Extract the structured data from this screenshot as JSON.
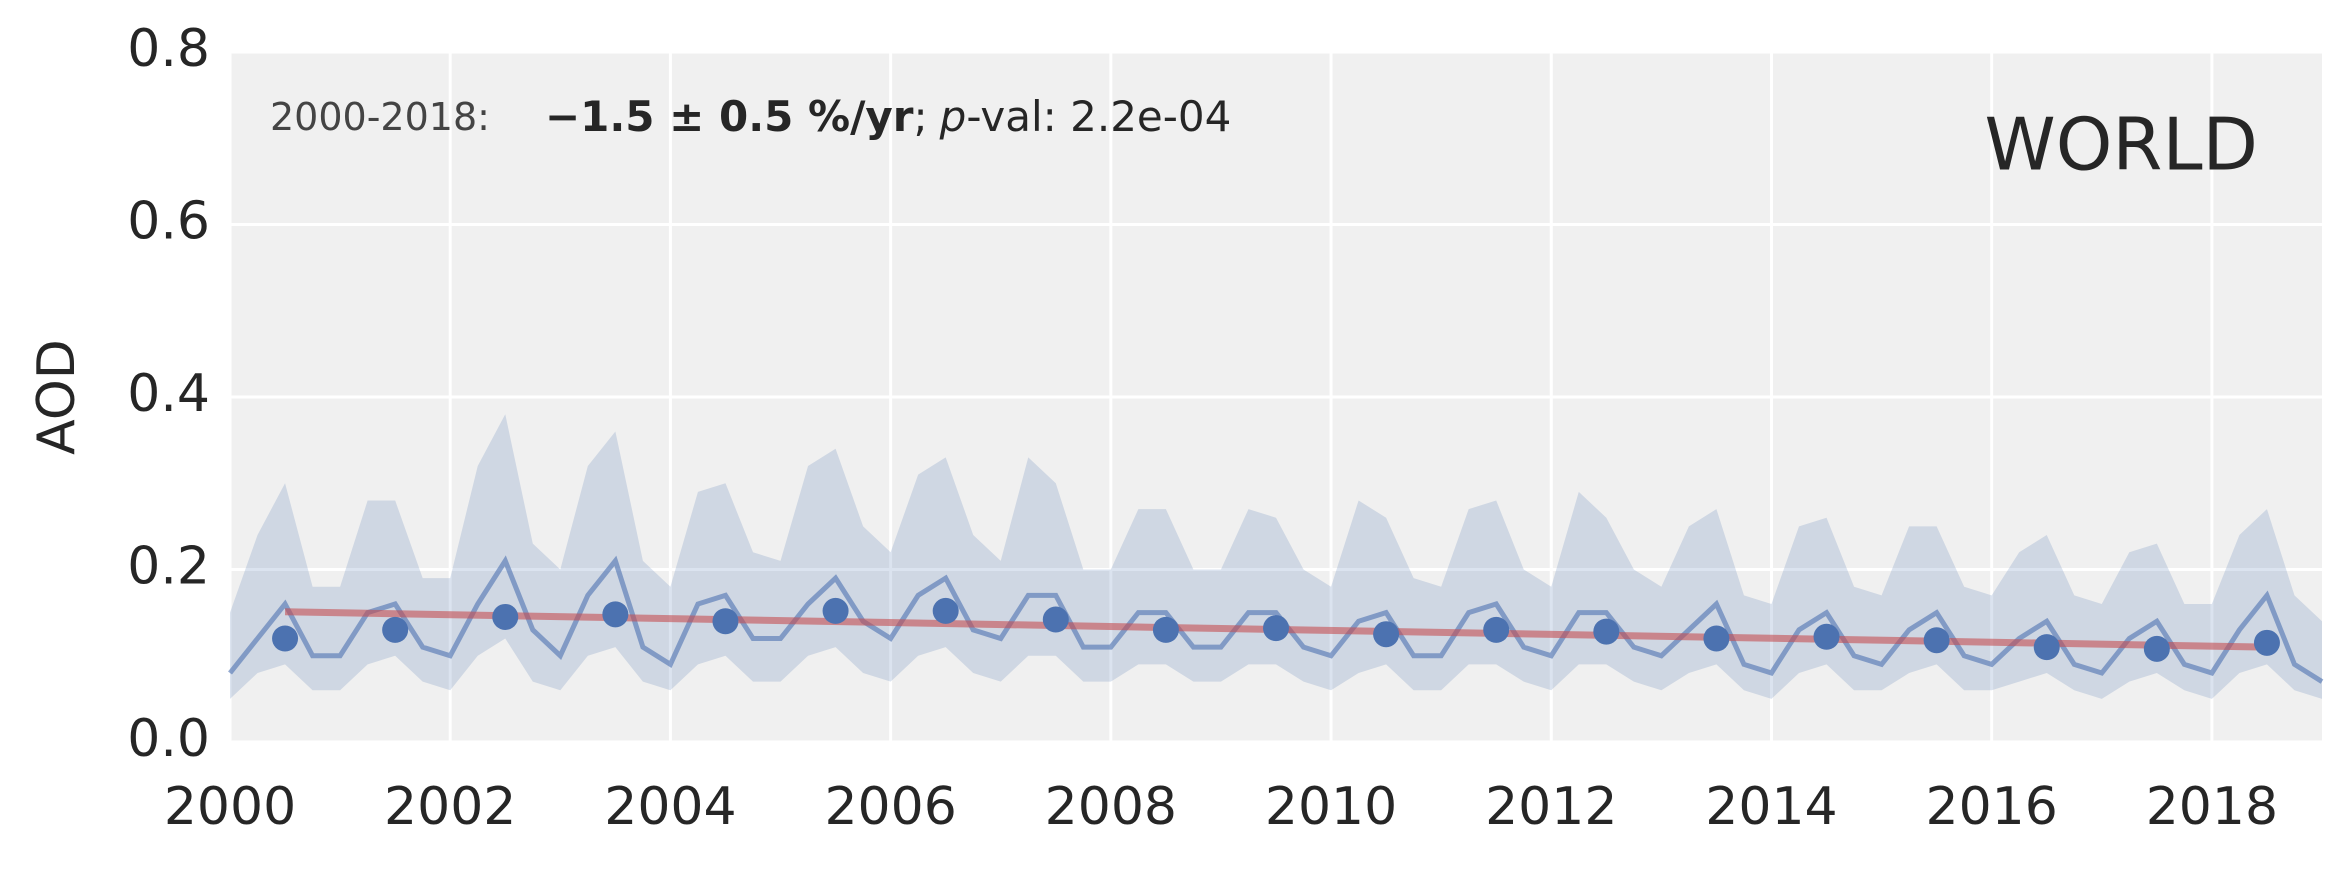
{
  "chart_data": {
    "type": "line",
    "ylabel": "AOD",
    "region": "WORLD",
    "annotation": {
      "period": "2000-2018:",
      "trend": "−1.5 ± 0.5 %/yr",
      "sep": ";",
      "p": "p",
      "pval": "-val: 2.2e-04"
    },
    "xlim": [
      2000,
      2019
    ],
    "ylim": [
      0,
      0.8
    ],
    "xticks": [
      2000,
      2002,
      2004,
      2006,
      2008,
      2010,
      2012,
      2014,
      2016,
      2018
    ],
    "yticks": [
      {
        "value": 0,
        "label": "0.0"
      },
      0.2,
      0.4,
      0.6,
      0.8
    ],
    "grid": true,
    "color": "#4c72b0",
    "trend_color": "#c44e52",
    "x": [
      2000,
      2000.25,
      2000.5,
      2000.75,
      2001,
      2001.25,
      2001.5,
      2001.75,
      2002,
      2002.25,
      2002.5,
      2002.75,
      2003,
      2003.25,
      2003.5,
      2003.75,
      2004,
      2004.25,
      2004.5,
      2004.75,
      2005,
      2005.25,
      2005.5,
      2005.75,
      2006,
      2006.25,
      2006.5,
      2006.75,
      2007,
      2007.25,
      2007.5,
      2007.75,
      2008,
      2008.25,
      2008.5,
      2008.75,
      2009,
      2009.25,
      2009.5,
      2009.75,
      2010,
      2010.25,
      2010.5,
      2010.75,
      2011,
      2011.25,
      2011.5,
      2011.75,
      2012,
      2012.25,
      2012.5,
      2012.75,
      2013,
      2013.25,
      2013.5,
      2013.75,
      2014,
      2014.25,
      2014.5,
      2014.75,
      2015,
      2015.25,
      2015.5,
      2015.75,
      2016,
      2016.25,
      2016.5,
      2016.75,
      2017,
      2017.25,
      2017.5,
      2017.75,
      2018,
      2018.25,
      2018.5,
      2018.75,
      2019
    ],
    "values": [
      0.08,
      0.12,
      0.16,
      0.1,
      0.1,
      0.15,
      0.16,
      0.11,
      0.1,
      0.16,
      0.21,
      0.13,
      0.1,
      0.17,
      0.21,
      0.11,
      0.09,
      0.16,
      0.17,
      0.12,
      0.12,
      0.16,
      0.19,
      0.14,
      0.12,
      0.17,
      0.19,
      0.13,
      0.12,
      0.17,
      0.17,
      0.11,
      0.11,
      0.15,
      0.15,
      0.11,
      0.11,
      0.15,
      0.15,
      0.11,
      0.1,
      0.14,
      0.15,
      0.1,
      0.1,
      0.15,
      0.16,
      0.11,
      0.1,
      0.15,
      0.15,
      0.11,
      0.1,
      0.13,
      0.16,
      0.09,
      0.08,
      0.13,
      0.15,
      0.1,
      0.09,
      0.13,
      0.15,
      0.1,
      0.09,
      0.12,
      0.14,
      0.09,
      0.08,
      0.12,
      0.14,
      0.09,
      0.08,
      0.13,
      0.17,
      0.09,
      0.07
    ],
    "lower": [
      0.05,
      0.08,
      0.09,
      0.06,
      0.06,
      0.09,
      0.1,
      0.07,
      0.06,
      0.1,
      0.12,
      0.07,
      0.06,
      0.1,
      0.11,
      0.07,
      0.06,
      0.09,
      0.1,
      0.07,
      0.07,
      0.1,
      0.11,
      0.08,
      0.07,
      0.1,
      0.11,
      0.08,
      0.07,
      0.1,
      0.1,
      0.07,
      0.07,
      0.09,
      0.09,
      0.07,
      0.07,
      0.09,
      0.09,
      0.07,
      0.06,
      0.08,
      0.09,
      0.06,
      0.06,
      0.09,
      0.09,
      0.07,
      0.06,
      0.09,
      0.09,
      0.07,
      0.06,
      0.08,
      0.09,
      0.06,
      0.05,
      0.08,
      0.09,
      0.06,
      0.06,
      0.08,
      0.09,
      0.06,
      0.06,
      0.07,
      0.08,
      0.06,
      0.05,
      0.07,
      0.08,
      0.06,
      0.05,
      0.08,
      0.09,
      0.06,
      0.05
    ],
    "upper": [
      0.15,
      0.24,
      0.3,
      0.18,
      0.18,
      0.28,
      0.28,
      0.19,
      0.19,
      0.32,
      0.38,
      0.23,
      0.2,
      0.32,
      0.36,
      0.21,
      0.18,
      0.29,
      0.3,
      0.22,
      0.21,
      0.32,
      0.34,
      0.25,
      0.22,
      0.31,
      0.33,
      0.24,
      0.21,
      0.33,
      0.3,
      0.2,
      0.2,
      0.27,
      0.27,
      0.2,
      0.2,
      0.27,
      0.26,
      0.2,
      0.18,
      0.28,
      0.26,
      0.19,
      0.18,
      0.27,
      0.28,
      0.2,
      0.18,
      0.29,
      0.26,
      0.2,
      0.18,
      0.25,
      0.27,
      0.17,
      0.16,
      0.25,
      0.26,
      0.18,
      0.17,
      0.25,
      0.25,
      0.18,
      0.17,
      0.22,
      0.24,
      0.17,
      0.16,
      0.22,
      0.23,
      0.16,
      0.16,
      0.24,
      0.27,
      0.17,
      0.14
    ],
    "annual": {
      "x": [
        2000.5,
        2001.5,
        2002.5,
        2003.5,
        2004.5,
        2005.5,
        2006.5,
        2007.5,
        2008.5,
        2009.5,
        2010.5,
        2011.5,
        2012.5,
        2013.5,
        2014.5,
        2015.5,
        2016.5,
        2017.5,
        2018.5
      ],
      "values": [
        0.12,
        0.13,
        0.145,
        0.148,
        0.14,
        0.152,
        0.152,
        0.142,
        0.13,
        0.132,
        0.125,
        0.13,
        0.128,
        0.12,
        0.122,
        0.118,
        0.11,
        0.108,
        0.115
      ]
    },
    "trend": {
      "x": [
        2000.5,
        2018.5
      ],
      "values": [
        0.151,
        0.11
      ]
    }
  }
}
